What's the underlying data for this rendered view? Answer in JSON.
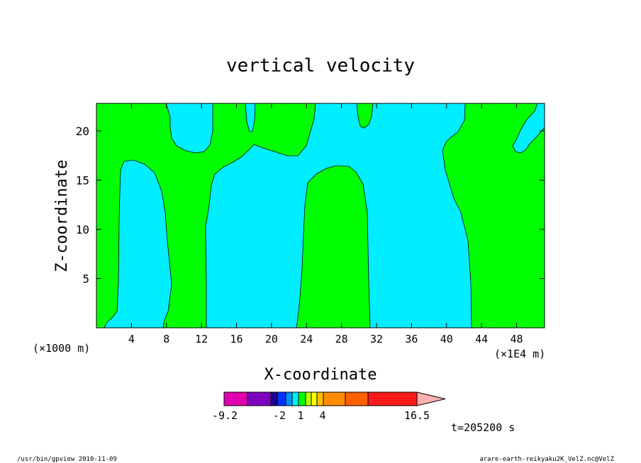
{
  "chart_data": {
    "type": "contour",
    "title": "vertical velocity",
    "xlabel": "X-coordinate",
    "ylabel": "Z-coordinate",
    "x_unit_left": "(×1000 m)",
    "x_unit_right": "(×1E4 m)",
    "xlim": [
      0,
      51.2
    ],
    "ylim": [
      0,
      22.8
    ],
    "x_ticks": [
      4,
      8,
      12,
      16,
      20,
      24,
      28,
      32,
      36,
      40,
      44,
      48
    ],
    "y_ticks": [
      5,
      10,
      15,
      20
    ],
    "fill_colors": {
      "background": "#00ff00",
      "contour": "#00eeff"
    },
    "colorbar": {
      "colors": [
        "#e000b0",
        "#8000c0",
        "#1a0090",
        "#0030ff",
        "#0090ff",
        "#00eeff",
        "#00ff00",
        "#c0ff00",
        "#ffff00",
        "#ffc000",
        "#ff8c00",
        "#ff6000",
        "#ff1a1a",
        "#ff8080",
        "#ffb0b0"
      ],
      "tick_labels": [
        "-9.2",
        "-2",
        "1",
        "4",
        "16.5"
      ]
    },
    "time_label": "t=205200 s"
  },
  "footer": {
    "left": "/usr/bin/gpview  2010-11-09",
    "right": "arare-earth-reikyaku2K_VelZ.nc@VelZ"
  }
}
